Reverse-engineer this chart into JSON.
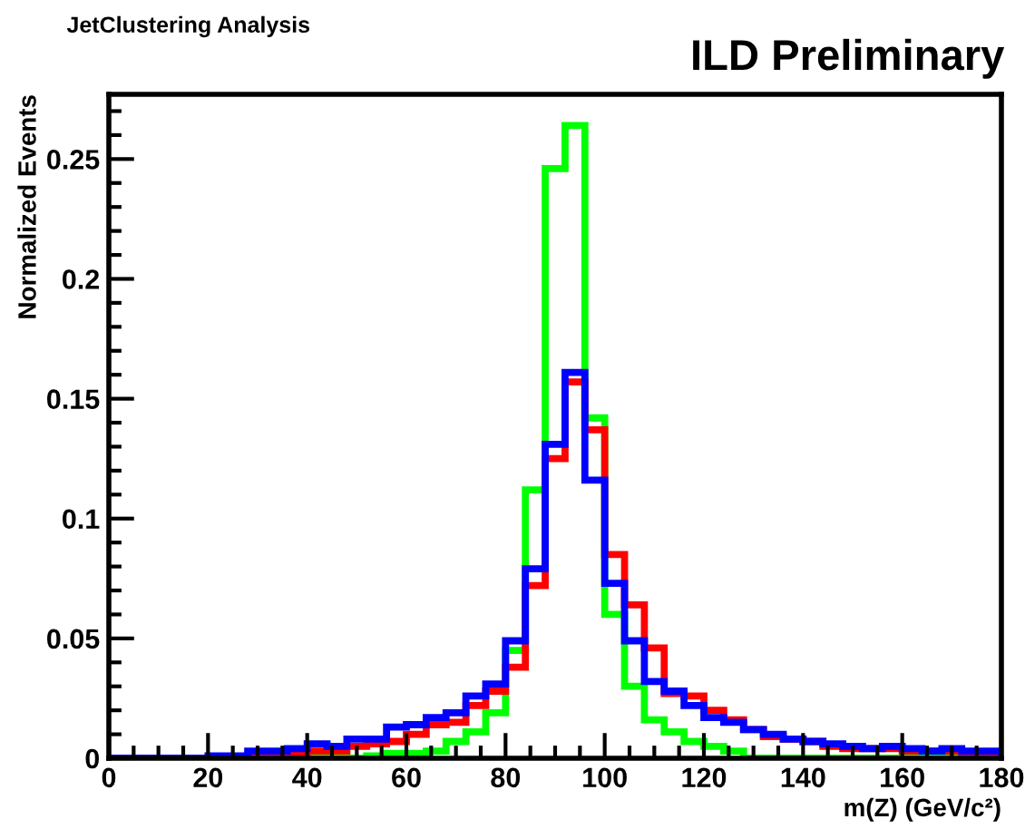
{
  "chart_data": {
    "type": "histogram",
    "title": "ILD Preliminary",
    "subtitle": "JetClustering Analysis",
    "xlabel": "m(Z) (GeV/c²)",
    "ylabel": "Normalized Events",
    "bins": [
      0,
      4,
      8,
      12,
      16,
      20,
      24,
      28,
      32,
      36,
      40,
      44,
      48,
      52,
      56,
      60,
      64,
      68,
      72,
      76,
      80,
      84,
      88,
      92,
      96,
      100,
      104,
      108,
      112,
      116,
      120,
      124,
      128,
      132,
      136,
      140,
      144,
      148,
      152,
      156,
      160,
      164,
      168,
      172,
      176,
      180
    ],
    "series": [
      {
        "color": "#00ff00",
        "values": [
          0,
          0,
          0,
          0,
          0,
          0,
          0,
          0,
          0,
          0,
          0,
          0,
          0,
          0.001,
          0.002,
          0.002,
          0.003,
          0.007,
          0.011,
          0.019,
          0.045,
          0.112,
          0.246,
          0.264,
          0.142,
          0.06,
          0.03,
          0.016,
          0.011,
          0.007,
          0.005,
          0.003,
          0,
          0,
          0,
          0,
          0,
          0,
          0,
          0,
          0,
          0,
          0,
          0,
          0
        ]
      },
      {
        "color": "#ff0000",
        "values": [
          0,
          0,
          0,
          0,
          0,
          0,
          0,
          0.001,
          0.001,
          0.002,
          0.003,
          0.003,
          0.005,
          0.006,
          0.007,
          0.01,
          0.014,
          0.015,
          0.022,
          0.028,
          0.038,
          0.072,
          0.125,
          0.157,
          0.137,
          0.085,
          0.064,
          0.046,
          0.027,
          0.026,
          0.02,
          0.016,
          0.012,
          0.009,
          0.008,
          0.007,
          0.005,
          0.004,
          0.004,
          0.004,
          0.003,
          0.003,
          0.003,
          0.002,
          0.002
        ]
      },
      {
        "color": "#0000ff",
        "values": [
          0,
          0,
          0,
          0,
          0,
          0.001,
          0.001,
          0.003,
          0.003,
          0.004,
          0.006,
          0.005,
          0.008,
          0.008,
          0.013,
          0.014,
          0.017,
          0.019,
          0.026,
          0.031,
          0.049,
          0.079,
          0.131,
          0.161,
          0.116,
          0.073,
          0.049,
          0.032,
          0.028,
          0.022,
          0.017,
          0.015,
          0.012,
          0.01,
          0.008,
          0.007,
          0.006,
          0.005,
          0.004,
          0.005,
          0.004,
          0.003,
          0.004,
          0.003,
          0.003
        ]
      }
    ],
    "xlim": [
      0,
      180
    ],
    "xticks": [
      0,
      20,
      40,
      60,
      80,
      100,
      120,
      140,
      160,
      180
    ],
    "ylim": [
      0,
      0.277
    ],
    "yticks": [
      0,
      0.05,
      0.1,
      0.15,
      0.2,
      0.25
    ],
    "grid": false,
    "legend": false
  }
}
